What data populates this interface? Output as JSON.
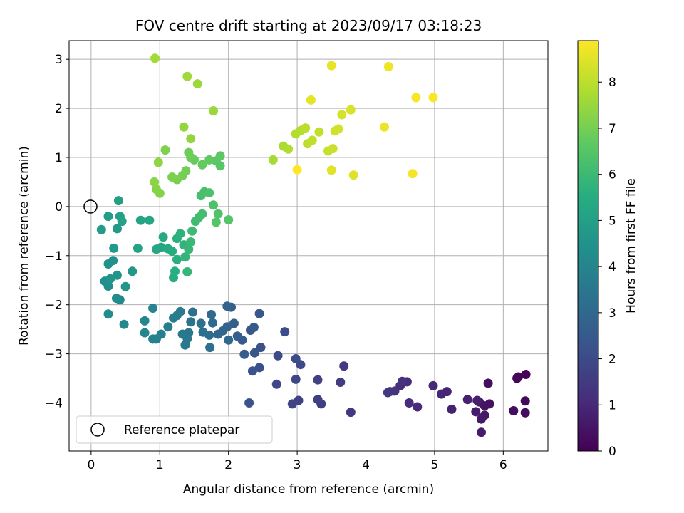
{
  "chart_data": {
    "type": "scatter",
    "title": "FOV centre drift starting at 2023/09/17 03:18:23",
    "xlabel": "Angular distance from reference (arcmin)",
    "ylabel": "Rotation from reference (arcmin)",
    "colorbar_label": "Hours from first FF file",
    "colormap": "viridis",
    "xlim": [
      -0.32,
      6.65
    ],
    "ylim": [
      -4.98,
      3.38
    ],
    "xticks": [
      0,
      1,
      2,
      3,
      4,
      5,
      6
    ],
    "yticks": [
      -4,
      -3,
      -2,
      -1,
      0,
      1,
      2,
      3
    ],
    "xtick_labels": [
      "0",
      "1",
      "2",
      "3",
      "4",
      "5",
      "6"
    ],
    "ytick_labels": [
      "−4",
      "−3",
      "−2",
      "−1",
      "0",
      "1",
      "2",
      "3"
    ],
    "clim": [
      0,
      8.9
    ],
    "cticks": [
      0,
      1,
      2,
      3,
      4,
      5,
      6,
      7,
      8
    ],
    "ctick_labels": [
      "0",
      "1",
      "2",
      "3",
      "4",
      "5",
      "6",
      "7",
      "8"
    ],
    "grid": true,
    "legend": {
      "label": "Reference platepar",
      "placement": "lower-left"
    },
    "reference_point": {
      "x": 0,
      "y": 0
    },
    "points": [
      [
        6.33,
        -3.42,
        0.05
      ],
      [
        6.22,
        -3.47,
        0.1
      ],
      [
        6.2,
        -3.5,
        0.15
      ],
      [
        6.32,
        -3.96,
        0.2
      ],
      [
        6.32,
        -4.2,
        0.25
      ],
      [
        6.15,
        -4.16,
        0.3
      ],
      [
        5.78,
        -3.6,
        0.35
      ],
      [
        5.8,
        -4.02,
        0.4
      ],
      [
        5.73,
        -4.06,
        0.45
      ],
      [
        5.65,
        -3.98,
        0.5
      ],
      [
        5.73,
        -4.25,
        0.55
      ],
      [
        5.68,
        -4.33,
        0.6
      ],
      [
        5.68,
        -4.6,
        0.65
      ],
      [
        5.6,
        -4.18,
        0.7
      ],
      [
        5.62,
        -3.95,
        0.75
      ],
      [
        5.48,
        -3.93,
        0.8
      ],
      [
        5.25,
        -4.13,
        0.85
      ],
      [
        5.18,
        -3.77,
        0.9
      ],
      [
        5.1,
        -3.82,
        0.95
      ],
      [
        4.98,
        -3.65,
        1.0
      ],
      [
        4.75,
        -4.08,
        1.05
      ],
      [
        4.63,
        -4.0,
        1.1
      ],
      [
        4.6,
        -3.57,
        1.15
      ],
      [
        4.5,
        -3.65,
        1.2
      ],
      [
        4.53,
        -3.56,
        1.25
      ],
      [
        4.42,
        -3.76,
        1.3
      ],
      [
        4.35,
        -3.77,
        1.35
      ],
      [
        4.32,
        -3.79,
        1.4
      ],
      [
        3.78,
        -4.19,
        1.45
      ],
      [
        3.68,
        -3.25,
        1.5
      ],
      [
        3.63,
        -3.58,
        1.55
      ],
      [
        3.35,
        -4.02,
        1.6
      ],
      [
        3.3,
        -3.93,
        1.65
      ],
      [
        3.3,
        -3.53,
        1.7
      ],
      [
        3.02,
        -3.95,
        1.75
      ],
      [
        2.93,
        -4.02,
        1.8
      ],
      [
        2.98,
        -3.52,
        1.85
      ],
      [
        2.7,
        -3.62,
        1.9
      ],
      [
        3.05,
        -3.22,
        1.95
      ],
      [
        2.98,
        -3.1,
        2.0
      ],
      [
        2.72,
        -3.04,
        2.05
      ],
      [
        2.82,
        -2.55,
        2.1
      ],
      [
        2.47,
        -2.87,
        2.15
      ],
      [
        2.45,
        -3.28,
        2.2
      ],
      [
        2.35,
        -3.35,
        2.25
      ],
      [
        2.3,
        -4.0,
        2.3
      ],
      [
        2.38,
        -2.98,
        2.35
      ],
      [
        2.45,
        -2.18,
        2.4
      ],
      [
        2.32,
        -2.52,
        2.45
      ],
      [
        2.37,
        -2.46,
        2.5
      ],
      [
        2.2,
        -2.72,
        2.55
      ],
      [
        2.23,
        -3.01,
        2.6
      ],
      [
        2.13,
        -2.64,
        2.65
      ],
      [
        2.08,
        -2.38,
        2.7
      ],
      [
        2.04,
        -2.05,
        2.75
      ],
      [
        1.98,
        -2.03,
        2.8
      ],
      [
        1.98,
        -2.45,
        2.85
      ],
      [
        1.92,
        -2.53,
        2.9
      ],
      [
        2.0,
        -2.72,
        2.95
      ],
      [
        1.85,
        -2.6,
        3.0
      ],
      [
        1.75,
        -2.2,
        3.05
      ],
      [
        1.77,
        -2.37,
        3.1
      ],
      [
        1.72,
        -2.62,
        3.15
      ],
      [
        1.73,
        -2.87,
        3.2
      ],
      [
        1.63,
        -2.56,
        3.25
      ],
      [
        1.6,
        -2.38,
        3.3
      ],
      [
        1.48,
        -2.15,
        3.35
      ],
      [
        1.45,
        -2.35,
        3.4
      ],
      [
        1.42,
        -2.57,
        3.45
      ],
      [
        1.4,
        -2.69,
        3.5
      ],
      [
        1.37,
        -2.82,
        3.55
      ],
      [
        1.33,
        -2.6,
        3.6
      ],
      [
        1.3,
        -2.14,
        3.65
      ],
      [
        1.25,
        -2.22,
        3.7
      ],
      [
        1.2,
        -2.27,
        3.75
      ],
      [
        1.12,
        -2.45,
        3.8
      ],
      [
        1.02,
        -2.6,
        3.85
      ],
      [
        0.95,
        -2.7,
        3.9
      ],
      [
        0.9,
        -2.7,
        3.95
      ],
      [
        0.9,
        -2.07,
        4.0
      ],
      [
        0.78,
        -2.33,
        4.05
      ],
      [
        0.78,
        -2.57,
        4.1
      ],
      [
        0.48,
        -2.4,
        4.15
      ],
      [
        0.42,
        -1.9,
        4.2
      ],
      [
        0.37,
        -1.87,
        4.25
      ],
      [
        0.25,
        -2.19,
        4.3
      ],
      [
        0.25,
        -1.62,
        4.35
      ],
      [
        0.2,
        -1.52,
        4.4
      ],
      [
        0.25,
        -1.17,
        4.45
      ],
      [
        0.32,
        -1.1,
        4.5
      ],
      [
        0.28,
        -1.47,
        4.55
      ],
      [
        0.38,
        -1.4,
        4.6
      ],
      [
        0.5,
        -1.63,
        4.65
      ],
      [
        0.6,
        -1.32,
        4.7
      ],
      [
        0.33,
        -0.85,
        4.75
      ],
      [
        0.38,
        -0.45,
        4.8
      ],
      [
        0.15,
        -0.47,
        4.85
      ],
      [
        0.25,
        -0.2,
        4.9
      ],
      [
        0.42,
        -0.2,
        4.95
      ],
      [
        0.4,
        0.12,
        5.0
      ],
      [
        0.45,
        -0.3,
        5.05
      ],
      [
        0.68,
        -0.85,
        5.1
      ],
      [
        0.72,
        -0.28,
        5.15
      ],
      [
        0.85,
        -0.28,
        5.2
      ],
      [
        0.95,
        -0.87,
        5.25
      ],
      [
        1.02,
        -0.83,
        5.3
      ],
      [
        1.05,
        -0.62,
        5.35
      ],
      [
        1.12,
        -0.86,
        5.4
      ],
      [
        1.18,
        -0.91,
        5.45
      ],
      [
        1.2,
        -1.45,
        5.5
      ],
      [
        1.22,
        -1.32,
        5.55
      ],
      [
        1.25,
        -1.08,
        5.6
      ],
      [
        1.25,
        -0.65,
        5.65
      ],
      [
        1.3,
        -0.55,
        5.7
      ],
      [
        1.35,
        -0.78,
        5.75
      ],
      [
        1.37,
        -1.03,
        5.8
      ],
      [
        1.4,
        -1.33,
        5.85
      ],
      [
        1.42,
        -0.87,
        5.9
      ],
      [
        1.45,
        -0.72,
        5.95
      ],
      [
        1.47,
        -0.5,
        6.0
      ],
      [
        1.52,
        -0.3,
        6.05
      ],
      [
        1.57,
        -0.22,
        6.1
      ],
      [
        1.62,
        -0.15,
        6.15
      ],
      [
        1.6,
        0.22,
        6.2
      ],
      [
        1.65,
        0.3,
        6.25
      ],
      [
        1.72,
        0.28,
        6.3
      ],
      [
        1.78,
        0.03,
        6.35
      ],
      [
        1.85,
        -0.15,
        6.4
      ],
      [
        1.82,
        -0.32,
        6.45
      ],
      [
        2.0,
        -0.27,
        6.5
      ],
      [
        1.88,
        0.83,
        6.55
      ],
      [
        1.82,
        0.93,
        6.6
      ],
      [
        1.88,
        1.03,
        6.65
      ],
      [
        1.72,
        0.95,
        6.7
      ],
      [
        1.62,
        0.85,
        6.75
      ],
      [
        1.5,
        0.95,
        6.8
      ],
      [
        1.45,
        1.0,
        6.85
      ],
      [
        1.42,
        1.1,
        6.9
      ],
      [
        1.38,
        0.73,
        6.95
      ],
      [
        1.33,
        0.63,
        7.0
      ],
      [
        1.25,
        0.55,
        7.05
      ],
      [
        1.18,
        0.6,
        7.1
      ],
      [
        1.08,
        1.15,
        7.15
      ],
      [
        1.0,
        0.27,
        7.2
      ],
      [
        0.95,
        0.35,
        7.25
      ],
      [
        0.92,
        0.5,
        7.3
      ],
      [
        0.98,
        0.9,
        7.35
      ],
      [
        1.45,
        1.38,
        7.4
      ],
      [
        1.35,
        1.62,
        7.45
      ],
      [
        1.78,
        1.95,
        7.5
      ],
      [
        1.55,
        2.5,
        7.55
      ],
      [
        1.4,
        2.65,
        7.6
      ],
      [
        0.93,
        3.02,
        7.65
      ],
      [
        2.65,
        0.95,
        7.7
      ],
      [
        2.8,
        1.23,
        7.75
      ],
      [
        2.87,
        1.17,
        7.8
      ],
      [
        2.98,
        1.48,
        7.85
      ],
      [
        3.05,
        1.55,
        7.9
      ],
      [
        3.12,
        1.6,
        7.95
      ],
      [
        3.15,
        1.28,
        8.0
      ],
      [
        3.22,
        1.35,
        8.05
      ],
      [
        3.32,
        1.52,
        8.1
      ],
      [
        3.45,
        1.13,
        8.15
      ],
      [
        3.52,
        1.18,
        8.2
      ],
      [
        3.55,
        1.54,
        8.25
      ],
      [
        3.6,
        1.58,
        8.3
      ],
      [
        3.65,
        1.87,
        8.35
      ],
      [
        3.78,
        1.97,
        8.4
      ],
      [
        3.82,
        0.64,
        8.45
      ],
      [
        3.5,
        0.74,
        8.5
      ],
      [
        3.2,
        2.17,
        8.55
      ],
      [
        3.5,
        2.87,
        8.6
      ],
      [
        4.27,
        1.62,
        8.65
      ],
      [
        4.33,
        2.85,
        8.7
      ],
      [
        4.68,
        0.67,
        8.75
      ],
      [
        4.73,
        2.22,
        8.8
      ],
      [
        4.98,
        2.22,
        8.85
      ],
      [
        3.0,
        0.75,
        8.9
      ]
    ]
  }
}
